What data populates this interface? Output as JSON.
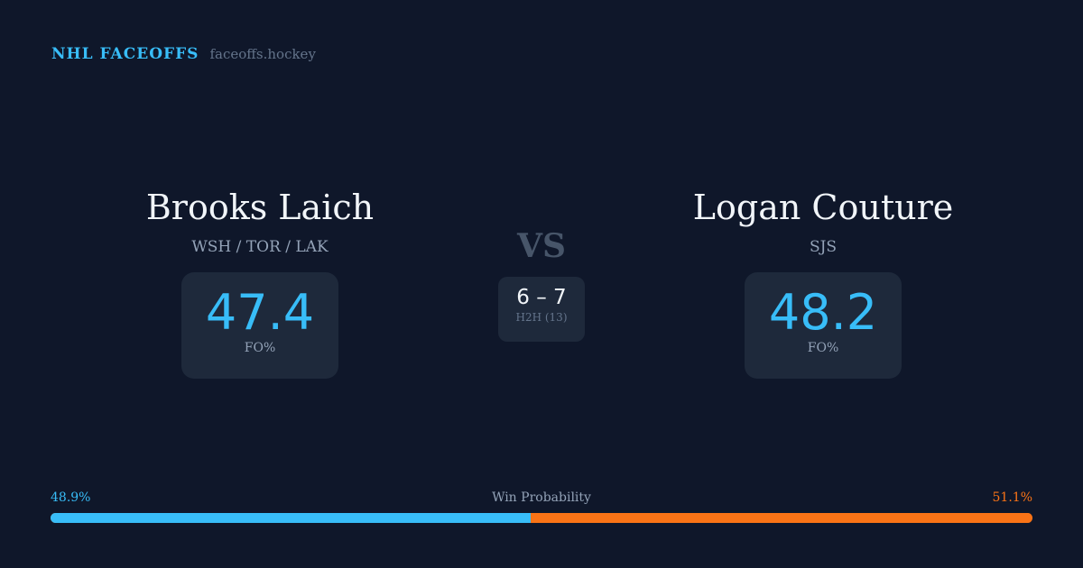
{
  "brand": {
    "name": "NHL FACEOFFS",
    "url": "faceoffs.hockey"
  },
  "player1": {
    "name": "Brooks Laich",
    "teams": "WSH / TOR / LAK",
    "fo_pct": "47.4",
    "fo_label": "FO%"
  },
  "player2": {
    "name": "Logan Couture",
    "teams": "SJS",
    "fo_pct": "48.2",
    "fo_label": "FO%"
  },
  "vs": "VS",
  "h2h": {
    "score": "6 – 7",
    "label": "H2H (13)"
  },
  "probability": {
    "label": "Win Probability",
    "left": "48.9%",
    "right": "51.1%",
    "left_value": 48.9,
    "colors": {
      "left": "#38bdf8",
      "right": "#f97316"
    }
  }
}
